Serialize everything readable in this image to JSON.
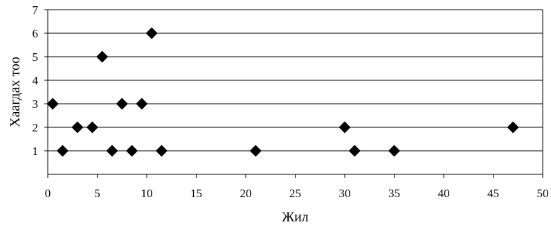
{
  "chart_data": {
    "type": "scatter",
    "title": "",
    "xlabel": "Жил",
    "ylabel": "Хаагдах тоо",
    "xlim": [
      0,
      50
    ],
    "ylim": [
      0,
      7
    ],
    "xticks": [
      0,
      5,
      10,
      15,
      20,
      25,
      30,
      35,
      40,
      45,
      50
    ],
    "yticks": [
      1,
      2,
      3,
      4,
      5,
      6,
      7
    ],
    "grid": "horizontal",
    "legend": "none",
    "marker": "diamond",
    "marker_color": "#000000",
    "points": [
      {
        "x": 0.5,
        "y": 3
      },
      {
        "x": 1.5,
        "y": 1
      },
      {
        "x": 3.0,
        "y": 2
      },
      {
        "x": 4.5,
        "y": 2
      },
      {
        "x": 5.5,
        "y": 5
      },
      {
        "x": 6.5,
        "y": 1
      },
      {
        "x": 7.5,
        "y": 3
      },
      {
        "x": 8.5,
        "y": 1
      },
      {
        "x": 9.5,
        "y": 3
      },
      {
        "x": 10.5,
        "y": 6
      },
      {
        "x": 11.5,
        "y": 1
      },
      {
        "x": 21.0,
        "y": 1
      },
      {
        "x": 30.0,
        "y": 2
      },
      {
        "x": 31.0,
        "y": 1
      },
      {
        "x": 35.0,
        "y": 1
      },
      {
        "x": 47.0,
        "y": 2
      }
    ]
  }
}
